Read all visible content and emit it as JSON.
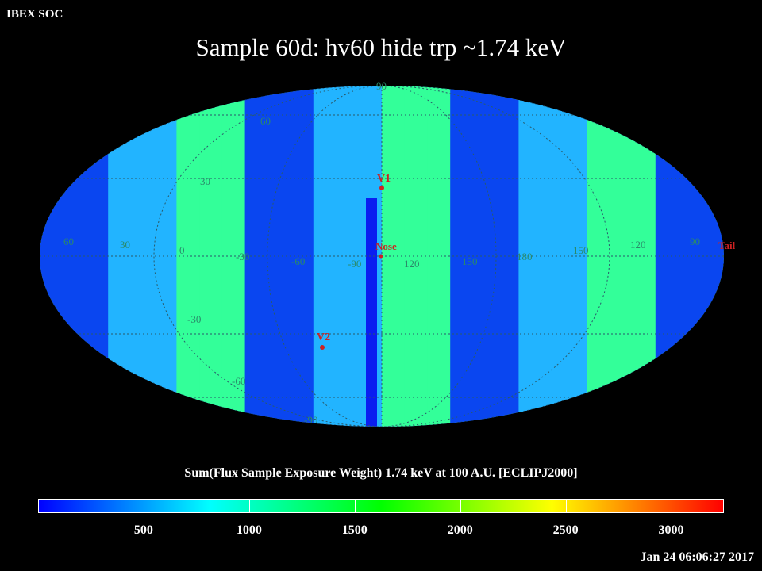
{
  "corner_label": "IBEX SOC",
  "title": "Sample 60d: hv60 hide trp ~1.74 keV",
  "colorbar": {
    "label": "Sum(Flux Sample Exposure Weight)  1.74 keV at 100 A.U. [ECLIPJ2000]",
    "ticks": [
      "500",
      "1000",
      "1500",
      "2000",
      "2500",
      "3000"
    ],
    "tick_values": [
      500,
      1000,
      1500,
      2000,
      2500,
      3000
    ],
    "range": [
      0,
      3250
    ],
    "colors": [
      "#0000ff",
      "#00ffff",
      "#00ff00",
      "#ffff00",
      "#ff0000"
    ]
  },
  "map": {
    "latitude_labels": [
      "90",
      "60",
      "30",
      "0",
      "-30",
      "-60",
      "-90"
    ],
    "longitude_labels": [
      "60",
      "30",
      "0",
      "-30",
      "-60",
      "-90",
      "120",
      "150",
      "180",
      "150",
      "120",
      "90"
    ],
    "markers": [
      {
        "name": "V1",
        "color": "#cc2222"
      },
      {
        "name": "Nose",
        "color": "#cc2222"
      },
      {
        "name": "Tail",
        "color": "#cc2222"
      },
      {
        "name": "V2",
        "color": "#cc2222"
      }
    ]
  },
  "timestamp": "Jan 24 06:06:27 2017"
}
